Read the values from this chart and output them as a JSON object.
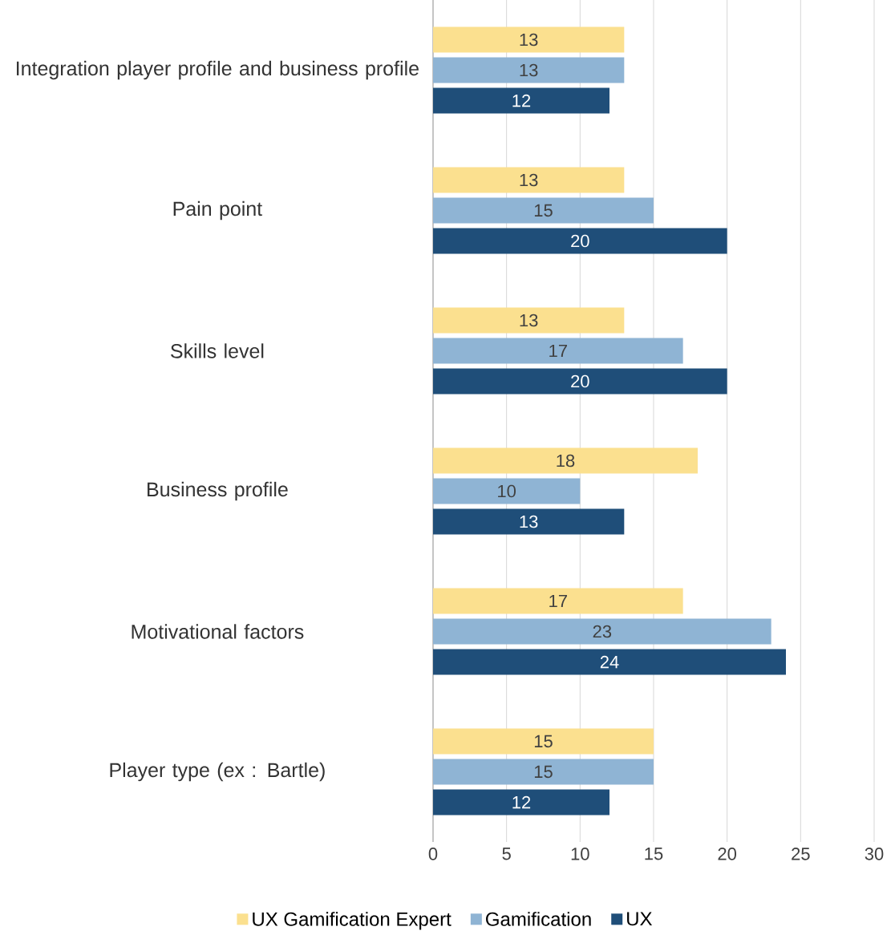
{
  "chart_data": {
    "type": "bar",
    "orientation": "horizontal",
    "categories": [
      "Integration player profile and business profile",
      "Pain point",
      "Skills level",
      "Business profile",
      "Motivational factors",
      "Player type (ex : Bartle)"
    ],
    "series": [
      {
        "name": "UX Gamification Expert",
        "color": "#fbe08f",
        "values": [
          13,
          13,
          13,
          18,
          17,
          15
        ]
      },
      {
        "name": "Gamification",
        "color": "#8fb4d4",
        "values": [
          13,
          15,
          17,
          10,
          23,
          15
        ]
      },
      {
        "name": "UX",
        "color": "#1f4e79",
        "values": [
          12,
          20,
          20,
          13,
          24,
          12
        ]
      }
    ],
    "xlim": [
      0,
      30
    ],
    "xticks": [
      0,
      5,
      10,
      15,
      20,
      25,
      30
    ],
    "grid": "x",
    "legend": "bottom",
    "data_labels": true
  }
}
